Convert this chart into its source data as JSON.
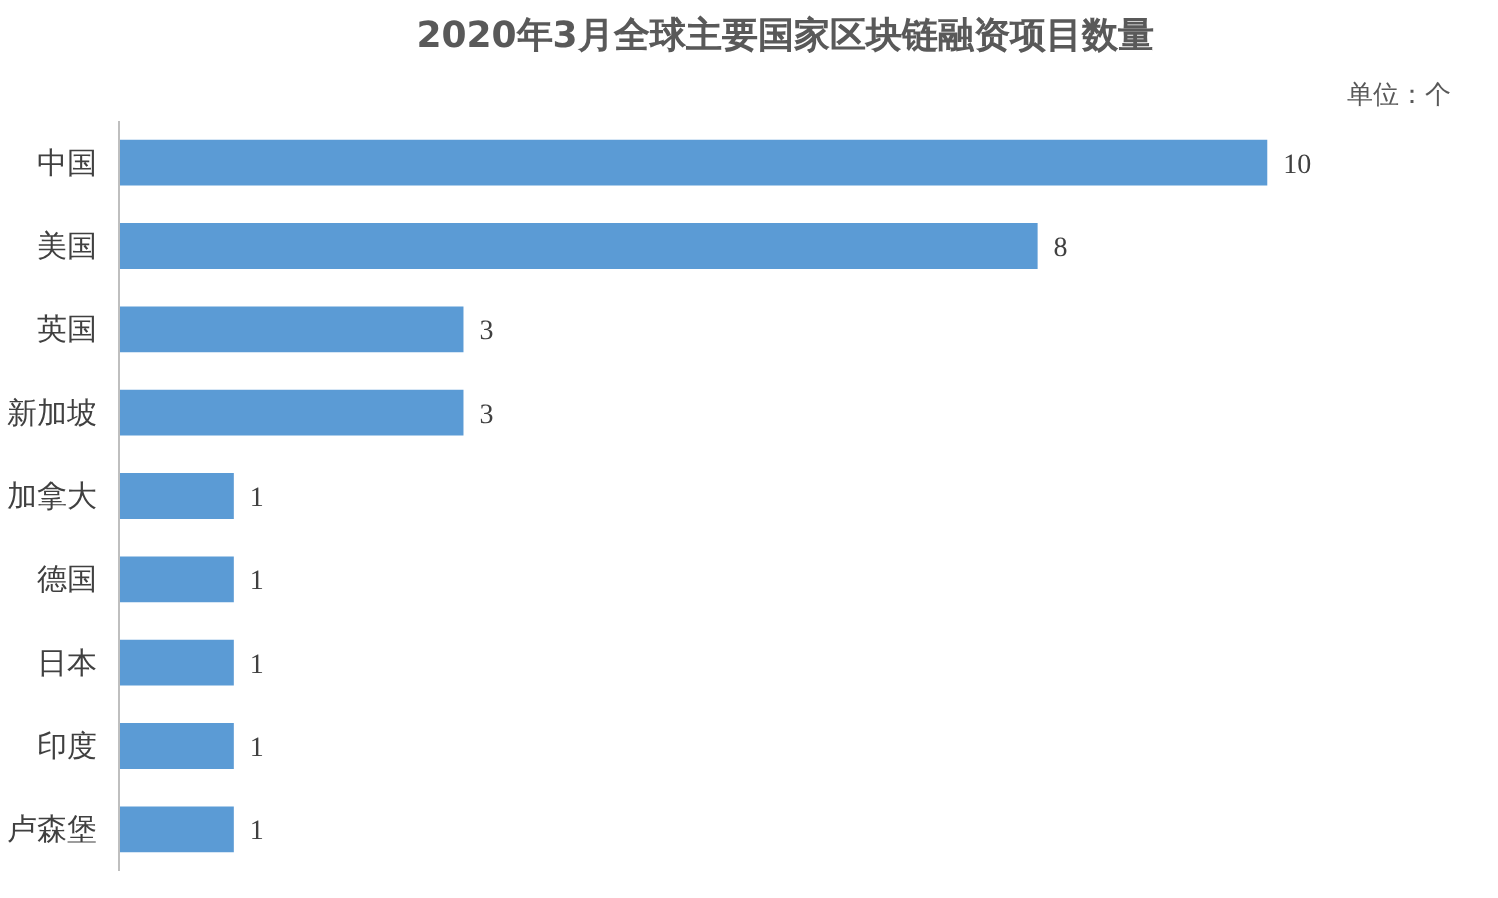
{
  "chart_data": {
    "type": "bar",
    "orientation": "horizontal",
    "title": "2020年3月全球主要国家区块链融资项目数量",
    "annotations": [
      "单位：个"
    ],
    "categories": [
      "中国",
      "美国",
      "英国",
      "新加坡",
      "加拿大",
      "德国",
      "日本",
      "印度",
      "卢森堡"
    ],
    "values": [
      10,
      8,
      3,
      3,
      1,
      1,
      1,
      1,
      1
    ],
    "color": "#5b9bd5",
    "data_labels": true,
    "grid": false
  }
}
